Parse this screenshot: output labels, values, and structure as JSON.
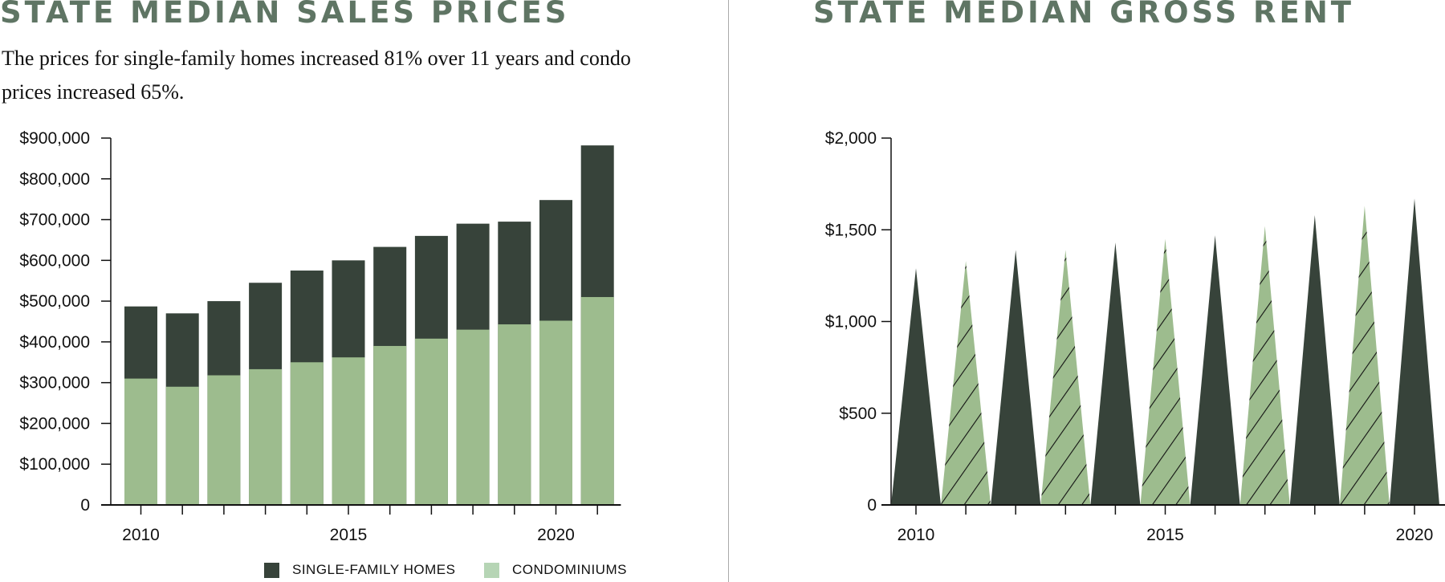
{
  "left": {
    "title": "STATE MEDIAN SALES PRICES",
    "subtitle": "The prices for single-family homes increased 81% over 11 years and condo prices increased 65%."
  },
  "right": {
    "title": "STATE MEDIAN GROSS RENT"
  },
  "colors": {
    "dark": "#37433a",
    "light": "#9dbc8e",
    "legend_light": "#b6d5b5",
    "title": "#5f7564"
  },
  "chart_data": [
    {
      "type": "bar",
      "mode": "overlapping",
      "categories": [
        2010,
        2011,
        2012,
        2013,
        2014,
        2015,
        2016,
        2017,
        2018,
        2019,
        2020,
        2021
      ],
      "x_tick_labels": [
        "2010",
        "2015",
        "2020"
      ],
      "y_tick_labels": [
        "0",
        "$100,000",
        "$200,000",
        "$300,000",
        "$400,000",
        "$500,000",
        "$600,000",
        "$700,000",
        "$800,000",
        "$900,000"
      ],
      "ylim": [
        0,
        900000
      ],
      "grid": false,
      "legend_position": "bottom",
      "series": [
        {
          "name": "SINGLE-FAMILY HOMES",
          "color": "#37433a",
          "values": [
            487000,
            470000,
            500000,
            545000,
            575000,
            600000,
            633000,
            660000,
            690000,
            695000,
            748000,
            882000
          ]
        },
        {
          "name": "CONDOMINIUMS",
          "color": "#9dbc8e",
          "values": [
            310000,
            290000,
            318000,
            333000,
            350000,
            362000,
            390000,
            408000,
            430000,
            443000,
            452000,
            510000
          ]
        }
      ]
    },
    {
      "type": "bar",
      "mark": "triangle",
      "categories": [
        2010,
        2011,
        2012,
        2013,
        2014,
        2015,
        2016,
        2017,
        2018,
        2019,
        2020
      ],
      "x_tick_labels": [
        "2010",
        "2015",
        "2020"
      ],
      "y_tick_labels": [
        "0",
        "$500",
        "$1,000",
        "$1,500",
        "$2,000"
      ],
      "ylim": [
        0,
        2000
      ],
      "grid": false,
      "fill_pattern": "alternating dark solid / light hatched",
      "values": [
        1290,
        1330,
        1390,
        1390,
        1430,
        1450,
        1470,
        1520,
        1580,
        1630,
        1670
      ]
    }
  ]
}
